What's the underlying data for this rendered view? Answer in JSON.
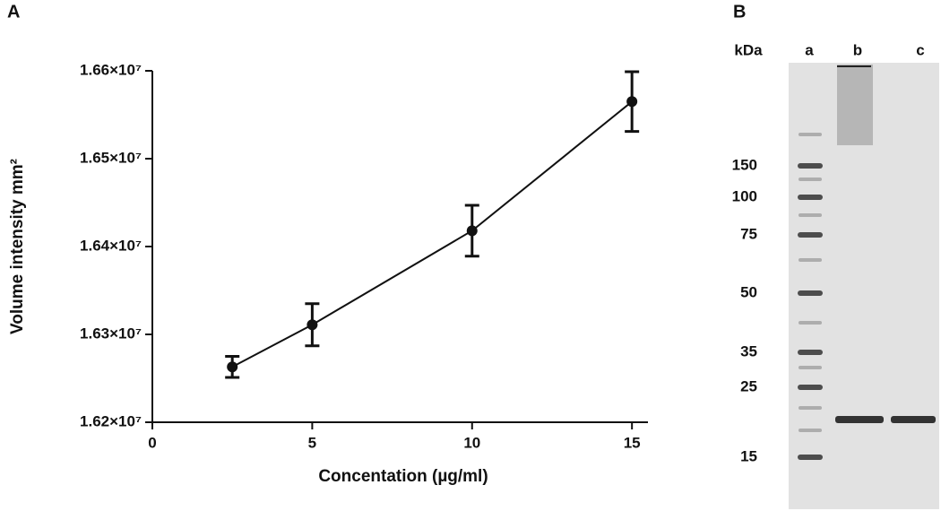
{
  "chart_data": {
    "type": "line",
    "panel_label": "A",
    "x_label": "Concentation (µg/ml)",
    "y_label": "Volume intensity mm²",
    "x": [
      2.5,
      5,
      10,
      15
    ],
    "series": [
      {
        "color": "#111111",
        "values": [
          16263000,
          16311000,
          16418000,
          16565000
        ],
        "errors": [
          12000,
          24000,
          29000,
          34000
        ]
      }
    ],
    "xlim": [
      0,
      15.5
    ],
    "xticks": [
      0,
      5,
      10,
      15
    ],
    "ylim": [
      16200000,
      16600000
    ],
    "yticks": [
      {
        "value": 16200000,
        "label": "1.62×10⁷"
      },
      {
        "value": 16300000,
        "label": "1.63×10⁷"
      },
      {
        "value": 16400000,
        "label": "1.64×10⁷"
      },
      {
        "value": 16500000,
        "label": "1.65×10⁷"
      },
      {
        "value": 16600000,
        "label": "1.66×10⁷"
      }
    ],
    "grid": false
  },
  "gel_panel": {
    "panel_label": "B",
    "unit_label": "kDa",
    "lanes": [
      "a",
      "b",
      "c"
    ],
    "markers": [
      "150",
      "100",
      "75",
      "50",
      "35",
      "25",
      "15"
    ]
  }
}
